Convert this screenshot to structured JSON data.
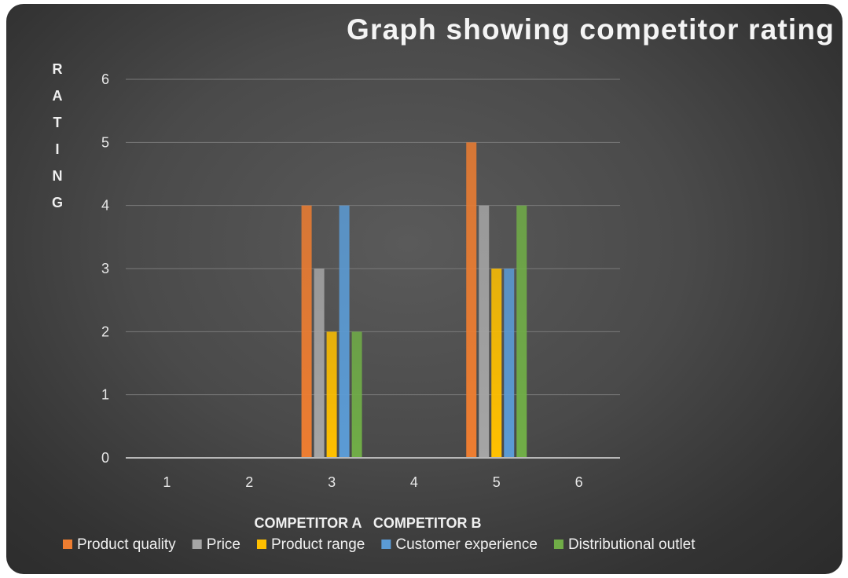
{
  "chart_data": {
    "type": "bar",
    "title": "Graph showing competitor rating",
    "ylabel": "RATING",
    "xlabel": "COMPETITOR A   COMPETITOR B",
    "categories": [
      "1",
      "2",
      "3",
      "4",
      "5",
      "6"
    ],
    "yticks": [
      "0",
      "1",
      "2",
      "3",
      "4",
      "5",
      "6"
    ],
    "ylim": [
      0,
      6
    ],
    "grid": true,
    "legend_position": "bottom",
    "series": [
      {
        "name": "Product quality",
        "color": "#ed7d31",
        "values": [
          0,
          0,
          4,
          0,
          5,
          0
        ]
      },
      {
        "name": "Price",
        "color": "#a5a5a5",
        "values": [
          0,
          0,
          3,
          0,
          4,
          0
        ]
      },
      {
        "name": "Product range",
        "color": "#ffc000",
        "values": [
          0,
          0,
          2,
          0,
          3,
          0
        ]
      },
      {
        "name": "Customer experience",
        "color": "#5b9bd5",
        "values": [
          0,
          0,
          4,
          0,
          3,
          0
        ]
      },
      {
        "name": "Distributional outlet",
        "color": "#70ad47",
        "values": [
          0,
          0,
          2,
          0,
          4,
          0
        ]
      }
    ]
  }
}
